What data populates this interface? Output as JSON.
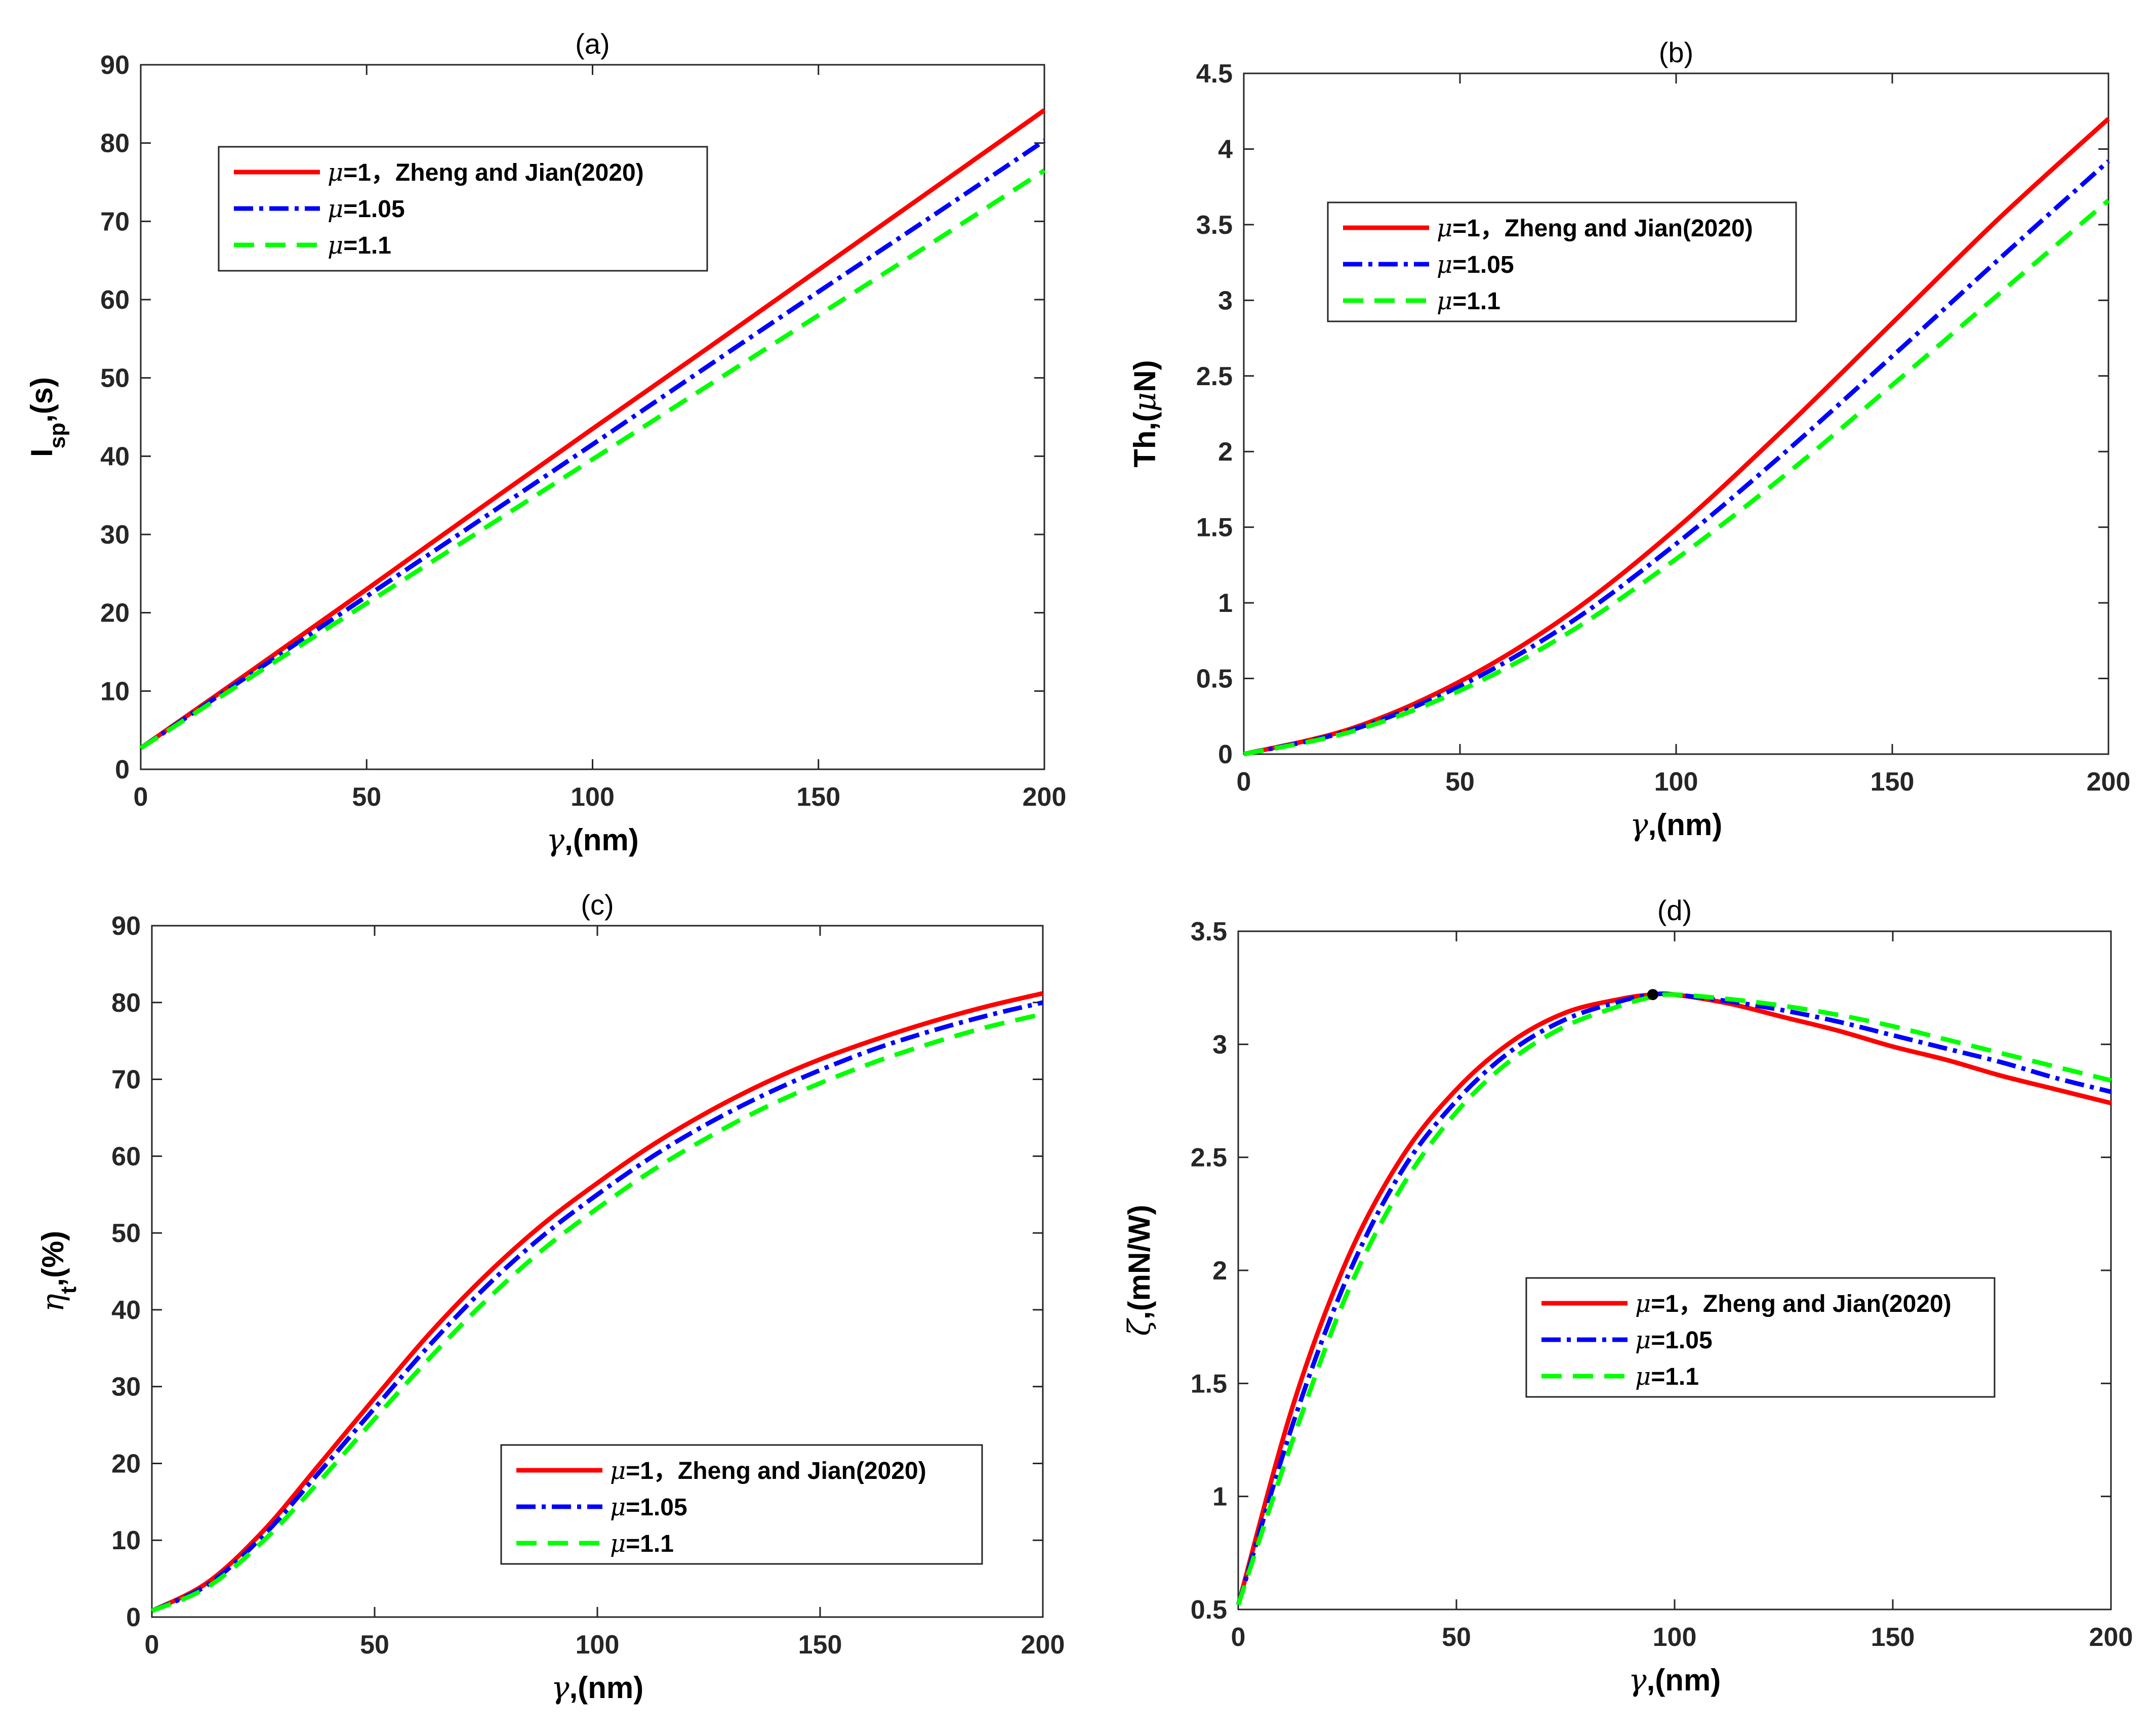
{
  "colors": {
    "red": "#ff0000",
    "blue": "#0000ff",
    "green": "#00ff00",
    "axis": "#262626"
  },
  "chart_data": [
    {
      "type": "line",
      "title": "(a)",
      "xlabel": {
        "greek": "γ",
        "rest": ",(nm)"
      },
      "ylabel": {
        "main": "I",
        "sub": "sp",
        "rest": ",(s)"
      },
      "xlim": [
        0,
        200
      ],
      "ylim": [
        0,
        90
      ],
      "xticks": [
        0,
        50,
        100,
        150,
        200
      ],
      "yticks": [
        0,
        10,
        20,
        30,
        40,
        50,
        60,
        70,
        80,
        90
      ],
      "legend_position": "top-left",
      "x": [
        0,
        25,
        50,
        75,
        100,
        125,
        150,
        175,
        200
      ],
      "series": [
        {
          "name": "μ=1，Zheng and Jian(2020)",
          "mu": "μ",
          "rest": "=1，Zheng and Jian(2020)",
          "style": "solid",
          "color": "#ff0000",
          "values": [
            2.7,
            12.8,
            23.0,
            33.3,
            43.5,
            53.6,
            63.8,
            74.0,
            84.2
          ]
        },
        {
          "name": "μ=1.05",
          "mu": "μ",
          "rest": "=1.05",
          "style": "dashdot",
          "color": "#0000ff",
          "values": [
            2.7,
            12.4,
            22.1,
            31.8,
            41.5,
            51.3,
            61.0,
            70.6,
            80.3
          ]
        },
        {
          "name": "μ=1.1",
          "mu": "μ",
          "rest": "=1.1",
          "style": "dash",
          "color": "#00ff00",
          "values": [
            2.7,
            12.0,
            21.2,
            30.4,
            39.6,
            48.8,
            58.0,
            67.2,
            76.5
          ]
        }
      ]
    },
    {
      "type": "line",
      "title": "(b)",
      "xlabel": {
        "greek": "γ",
        "rest": ",(nm)"
      },
      "ylabel": {
        "main": "Th,(",
        "sub": "",
        "mu": "μ",
        "rest": "N)"
      },
      "xlim": [
        0,
        200
      ],
      "ylim": [
        0,
        4.5
      ],
      "xticks": [
        0,
        50,
        100,
        150,
        200
      ],
      "yticks": [
        0,
        0.5,
        1,
        1.5,
        2,
        2.5,
        3,
        3.5,
        4,
        4.5
      ],
      "legend_position": "top-left",
      "x": [
        0,
        25,
        50,
        75,
        100,
        125,
        150,
        175,
        200
      ],
      "series": [
        {
          "name": "μ=1，Zheng and Jian(2020)",
          "mu": "μ",
          "rest": "=1，Zheng and Jian(2020)",
          "style": "solid",
          "color": "#ff0000",
          "values": [
            0.0,
            0.17,
            0.48,
            0.92,
            1.49,
            2.15,
            2.85,
            3.55,
            4.2
          ]
        },
        {
          "name": "μ=1.05",
          "mu": "μ",
          "rest": "=1.05",
          "style": "dashdot",
          "color": "#0000ff",
          "values": [
            0.0,
            0.16,
            0.45,
            0.86,
            1.39,
            1.99,
            2.63,
            3.28,
            3.92
          ]
        },
        {
          "name": "μ=1.1",
          "mu": "μ",
          "rest": "=1.1",
          "style": "dash",
          "color": "#00ff00",
          "values": [
            0.0,
            0.15,
            0.42,
            0.8,
            1.29,
            1.84,
            2.44,
            3.05,
            3.66
          ]
        }
      ]
    },
    {
      "type": "line",
      "title": "(c)",
      "xlabel": {
        "greek": "γ",
        "rest": ",(nm)"
      },
      "ylabel": {
        "main": "η",
        "sub": "t",
        "rest": ",(%)"
      },
      "xlim": [
        0,
        200
      ],
      "ylim": [
        0,
        90
      ],
      "xticks": [
        0,
        50,
        100,
        150,
        200
      ],
      "yticks": [
        0,
        10,
        20,
        30,
        40,
        50,
        60,
        70,
        80,
        90
      ],
      "legend_position": "bottom-right",
      "x": [
        0,
        12.5,
        25,
        37.5,
        50,
        62.5,
        75,
        87.5,
        100,
        112.5,
        125,
        137.5,
        150,
        162.5,
        175,
        187.5,
        200
      ],
      "series": [
        {
          "name": "μ=1，Zheng and Jian(2020)",
          "mu": "μ",
          "rest": "=1，Zheng and Jian(2020)",
          "style": "solid",
          "color": "#ff0000",
          "values": [
            0.8,
            4.5,
            11.2,
            19.8,
            28.5,
            37.0,
            44.5,
            51.0,
            56.5,
            61.5,
            65.8,
            69.5,
            72.6,
            75.2,
            77.5,
            79.5,
            81.2
          ]
        },
        {
          "name": "μ=1.05",
          "mu": "μ",
          "rest": "=1.05",
          "style": "dashdot",
          "color": "#0000ff",
          "values": [
            0.8,
            4.2,
            10.6,
            18.8,
            27.2,
            35.5,
            43.0,
            49.5,
            55.0,
            60.0,
            64.3,
            68.0,
            71.2,
            74.0,
            76.3,
            78.3,
            80.0
          ]
        },
        {
          "name": "μ=1.1",
          "mu": "μ",
          "rest": "=1.1",
          "style": "dash",
          "color": "#00ff00",
          "values": [
            0.8,
            3.9,
            9.9,
            17.6,
            25.8,
            33.8,
            41.2,
            47.7,
            53.2,
            58.2,
            62.5,
            66.3,
            69.5,
            72.3,
            74.7,
            76.8,
            78.5
          ]
        }
      ]
    },
    {
      "type": "line",
      "title": "(d)",
      "xlabel": {
        "greek": "γ",
        "rest": ",(nm)"
      },
      "ylabel": {
        "main": "ζ",
        "sub": "",
        "rest": ",(mN/W)"
      },
      "xlim": [
        0,
        200
      ],
      "ylim": [
        0.5,
        3.5
      ],
      "xticks": [
        0,
        50,
        100,
        150,
        200
      ],
      "yticks": [
        0.5,
        1,
        1.5,
        2,
        2.5,
        3,
        3.5
      ],
      "legend_position": "center-right",
      "marker": {
        "x": 95,
        "y": 3.22
      },
      "x": [
        0,
        12.5,
        25,
        37.5,
        50,
        62.5,
        75,
        87.5,
        95,
        100,
        112.5,
        125,
        137.5,
        150,
        162.5,
        175,
        187.5,
        200
      ],
      "series": [
        {
          "name": "μ=1，Zheng and Jian(2020)",
          "mu": "μ",
          "rest": "=1，Zheng and Jian(2020)",
          "style": "solid",
          "color": "#ff0000",
          "values": [
            0.52,
            1.4,
            2.05,
            2.5,
            2.8,
            3.01,
            3.14,
            3.2,
            3.22,
            3.22,
            3.18,
            3.12,
            3.06,
            2.99,
            2.93,
            2.86,
            2.8,
            2.74
          ]
        },
        {
          "name": "μ=1.05",
          "mu": "μ",
          "rest": "=1.05",
          "style": "dashdot",
          "color": "#0000ff",
          "values": [
            0.52,
            1.32,
            1.97,
            2.44,
            2.75,
            2.97,
            3.11,
            3.19,
            3.22,
            3.22,
            3.19,
            3.15,
            3.1,
            3.04,
            2.98,
            2.92,
            2.85,
            2.79
          ]
        },
        {
          "name": "μ=1.1",
          "mu": "μ",
          "rest": "=1.1",
          "style": "dash",
          "color": "#00ff00",
          "values": [
            0.52,
            1.25,
            1.9,
            2.37,
            2.7,
            2.93,
            3.08,
            3.17,
            3.21,
            3.22,
            3.2,
            3.17,
            3.13,
            3.08,
            3.02,
            2.96,
            2.9,
            2.84
          ]
        }
      ]
    }
  ]
}
